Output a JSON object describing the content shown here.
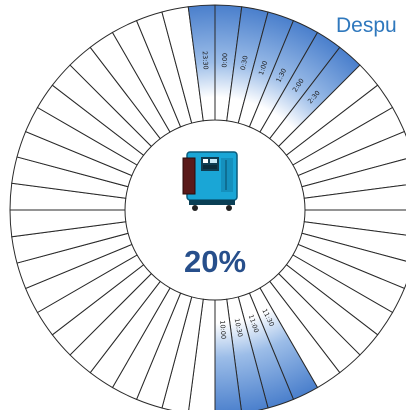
{
  "title": "Despu",
  "percent_label": "20%",
  "icon": "generator-icon",
  "ring": {
    "segment_count": 48,
    "colors": {
      "highlight": "#5c8ed0",
      "outline": "#2a2a2a",
      "empty": "#ffffff"
    },
    "top_block": {
      "labels": [
        "23:30",
        "0:00",
        "0:30",
        "1:00",
        "1:30",
        "2:00",
        "2:30"
      ]
    },
    "bottom_block": {
      "labels": [
        "10:00",
        "10:30",
        "11:00",
        "11:30"
      ]
    }
  }
}
